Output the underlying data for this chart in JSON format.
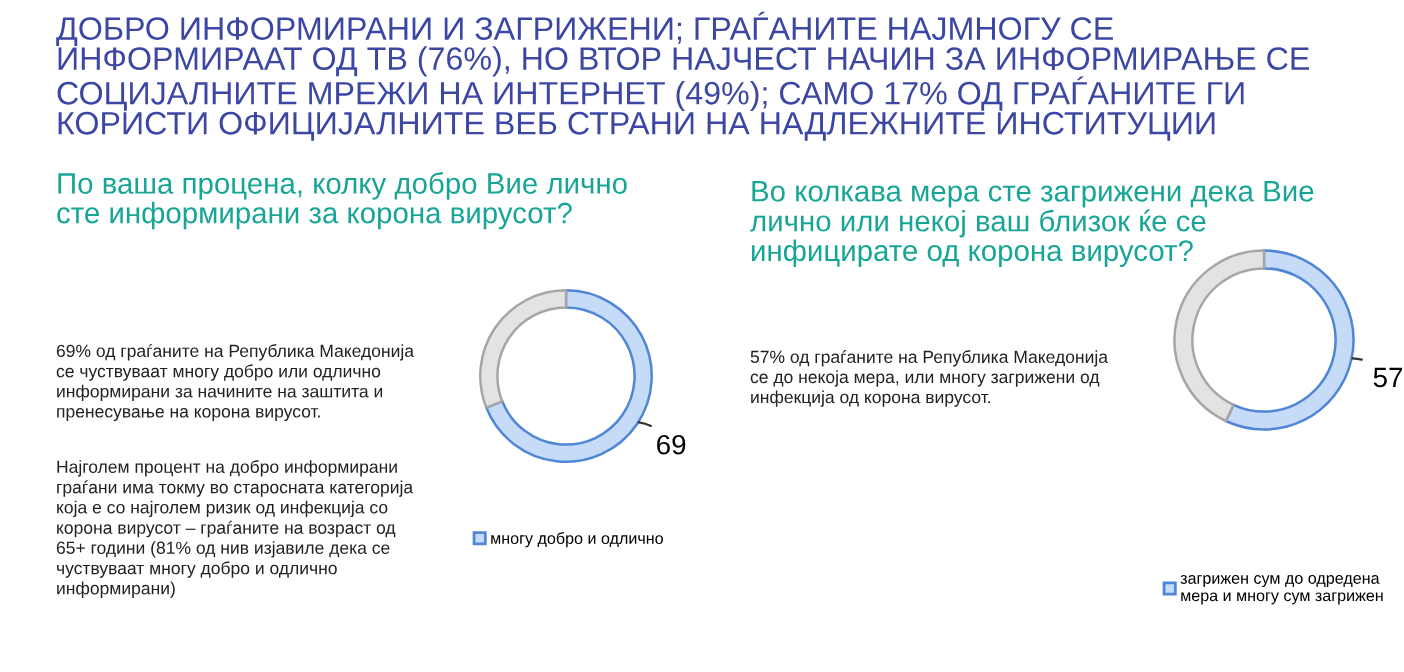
{
  "chart_data": [
    {
      "type": "donut",
      "title": "ДОБРО ИНФОРМИРАНИ И ЗАГРИЖЕНИ; ГРАЃАНИТЕ НАЈМНОГУ СЕ\nИНФОРМИРААТ ОД ТВ (76%), НО ВТОР НАЈЧЕСТ НАЧИН ЗА ИНФОРМИРАЊЕ СЕ\nСОЦИЈАЛНИТЕ МРЕЖИ НА ИНТЕРНЕТ (49%); САМО 17% ОД ГРАЃАНИТЕ ГИ\nКОРИСТИ ОФИЦИЈАЛНИТЕ ВЕБ СТРАНИ НА НАДЛЕЖНИТЕ ИНСТИТУЦИИ",
      "subtitle": "По ваша процена, колку добро Вие лично\nсте информирани за корона вирусот?",
      "categories": [
        "многу добро и одлично",
        null
      ],
      "values": [
        69,
        31
      ],
      "colors": [
        "#c6dbf7",
        "#e3e3e3"
      ],
      "value_labels": [
        "69",
        null
      ],
      "legend": "bottom",
      "annotations": [
        "69% од граѓаните на Република Македонија\nсе чуствуваат многу добро или одлично\nинформирани за начините на заштита и\nпренесување на корона вирусот.",
        "Најголем процент на добро информирани\nграѓани има токму во старосната категорија\nкоја е со најголем ризик од инфекција со\nкорона вирусот – граѓаните на возраст од\n65+ години (81% од нив изјавиле дека се\nчуствуваат многу добро и одлично\nинформирани)"
      ]
    },
    {
      "type": "donut",
      "subtitle": "Во колкава мера сте загрижени дека Вие\nлично или некој ваш близок ќе се\nинфицирате од корона вирусот?",
      "categories": [
        "загрижен сум до одредена\nмера и многу сум загрижен",
        null
      ],
      "values": [
        57,
        43
      ],
      "colors": [
        "#c6dbf7",
        "#e3e3e3"
      ],
      "value_labels": [
        "57",
        null
      ],
      "legend": "bottom",
      "annotations": [
        "57% од граѓаните на Република Македонија\nсе до некоја мера, или многу загрижени од\nинфекција од корона вирусот."
      ]
    }
  ]
}
